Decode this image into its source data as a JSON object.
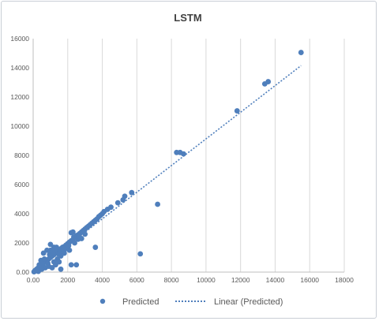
{
  "chart_data": {
    "type": "scatter",
    "title": "LSTM",
    "xlabel": "",
    "ylabel": "",
    "xlim": [
      0,
      18000
    ],
    "ylim": [
      0,
      16000
    ],
    "x_ticks": [
      0,
      2000,
      4000,
      6000,
      8000,
      10000,
      12000,
      14000,
      16000,
      18000
    ],
    "x_tick_labels": [
      "0.00",
      "2000",
      "4000",
      "6000",
      "8000",
      "10000",
      "12000",
      "14000",
      "16000",
      "18000"
    ],
    "y_ticks": [
      0,
      2000,
      4000,
      6000,
      8000,
      10000,
      12000,
      14000,
      16000
    ],
    "y_tick_labels": [
      "0.00",
      "2000",
      "4000",
      "6000",
      "8000",
      "10000",
      "12000",
      "14000",
      "16000"
    ],
    "grid": "vertical",
    "legend": "bottom",
    "colors": {
      "points": "#4f7fbc",
      "trendline": "#4f7fbc",
      "grid": "#d9d9d9",
      "axis": "#bfbfbf"
    },
    "series": [
      {
        "name": "Predicted",
        "marker": "circle",
        "points": [
          [
            15500,
            15050
          ],
          [
            13600,
            13050
          ],
          [
            13400,
            12900
          ],
          [
            11800,
            11050
          ],
          [
            8300,
            8200
          ],
          [
            8500,
            8200
          ],
          [
            8700,
            8100
          ],
          [
            7200,
            4650
          ],
          [
            6200,
            1250
          ],
          [
            5700,
            5450
          ],
          [
            5300,
            5200
          ],
          [
            5200,
            4950
          ],
          [
            4900,
            4750
          ],
          [
            4500,
            4450
          ],
          [
            4300,
            4300
          ],
          [
            4100,
            4150
          ],
          [
            4000,
            4000
          ],
          [
            3900,
            3900
          ],
          [
            3800,
            3800
          ],
          [
            3700,
            3650
          ],
          [
            3600,
            3550
          ],
          [
            3500,
            3450
          ],
          [
            3400,
            3350
          ],
          [
            3300,
            3250
          ],
          [
            3200,
            3150
          ],
          [
            3100,
            3050
          ],
          [
            3000,
            2950
          ],
          [
            2900,
            2850
          ],
          [
            2800,
            2750
          ],
          [
            2700,
            2650
          ],
          [
            2600,
            2550
          ],
          [
            2500,
            2500
          ],
          [
            2400,
            2350
          ],
          [
            2300,
            2200
          ],
          [
            2200,
            2150
          ],
          [
            2100,
            2050
          ],
          [
            2000,
            1950
          ],
          [
            2200,
            2700
          ],
          [
            2300,
            2750
          ],
          [
            1900,
            1850
          ],
          [
            1800,
            1750
          ],
          [
            1700,
            1700
          ],
          [
            1600,
            1600
          ],
          [
            1500,
            1450
          ],
          [
            1400,
            1400
          ],
          [
            1300,
            1300
          ],
          [
            1200,
            1200
          ],
          [
            1100,
            1100
          ],
          [
            1000,
            1000
          ],
          [
            900,
            900
          ],
          [
            800,
            800
          ],
          [
            700,
            700
          ],
          [
            600,
            600
          ],
          [
            500,
            500
          ],
          [
            400,
            400
          ],
          [
            300,
            300
          ],
          [
            200,
            200
          ],
          [
            100,
            100
          ],
          [
            1000,
            1900
          ],
          [
            1200,
            1700
          ],
          [
            800,
            1500
          ],
          [
            600,
            1300
          ],
          [
            1000,
            1500
          ],
          [
            1400,
            900
          ],
          [
            1200,
            700
          ],
          [
            1600,
            1100
          ],
          [
            900,
            400
          ],
          [
            700,
            300
          ],
          [
            1800,
            1300
          ],
          [
            2100,
            1500
          ],
          [
            1300,
            500
          ],
          [
            1100,
            300
          ],
          [
            2200,
            500
          ],
          [
            2500,
            500
          ],
          [
            1600,
            200
          ],
          [
            3600,
            1700
          ],
          [
            3000,
            2600
          ],
          [
            2800,
            2300
          ],
          [
            2600,
            2250
          ],
          [
            1900,
            1600
          ],
          [
            2400,
            2000
          ],
          [
            1500,
            700
          ],
          [
            500,
            200
          ],
          [
            300,
            50
          ],
          [
            150,
            80
          ],
          [
            50,
            20
          ],
          [
            80,
            60
          ],
          [
            250,
            150
          ],
          [
            350,
            500
          ],
          [
            450,
            800
          ],
          [
            650,
            900
          ],
          [
            850,
            600
          ],
          [
            950,
            1200
          ],
          [
            1150,
            1350
          ],
          [
            1250,
            1550
          ],
          [
            1350,
            1700
          ],
          [
            1450,
            1250
          ],
          [
            1550,
            1350
          ],
          [
            1650,
            1450
          ],
          [
            1750,
            1550
          ],
          [
            2050,
            1800
          ],
          [
            2350,
            2400
          ],
          [
            2650,
            2450
          ]
        ]
      },
      {
        "name": "Linear (Predicted)",
        "type": "trendline",
        "line": {
          "x": [
            0,
            15500
          ],
          "y": [
            0,
            14150
          ]
        }
      }
    ]
  }
}
